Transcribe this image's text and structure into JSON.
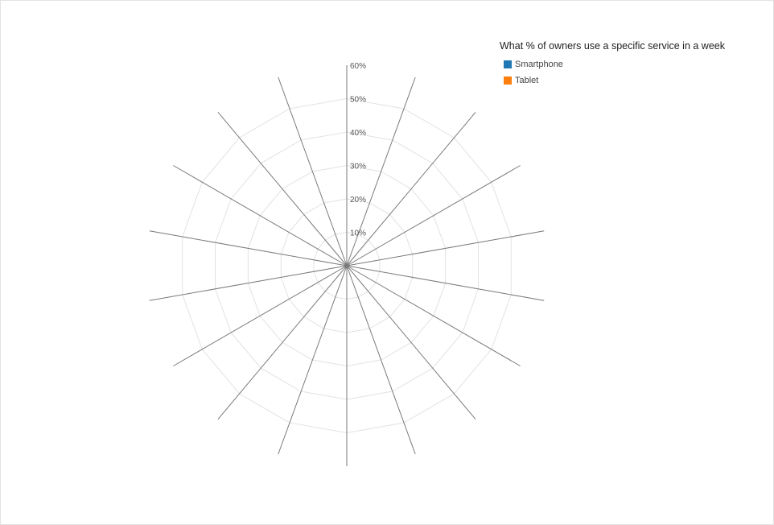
{
  "chart_data": {
    "type": "radar",
    "title": "What % of owners use a specific service in a week",
    "axis_count": 18,
    "rlim": [
      0,
      60
    ],
    "radial_ticks": [
      "10%",
      "20%",
      "30%",
      "40%",
      "50%",
      "60%"
    ],
    "series": [
      {
        "name": "Smartphone",
        "color": "#1f77b4",
        "values": []
      },
      {
        "name": "Tablet",
        "color": "#ff7f0e",
        "values": []
      }
    ],
    "legend_position": "top-right",
    "grid": true
  }
}
